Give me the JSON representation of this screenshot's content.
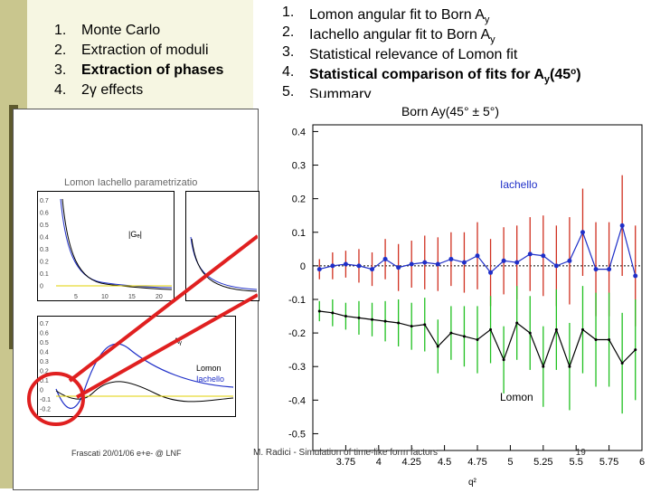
{
  "left_agenda": [
    {
      "num": "1.",
      "text": "Monte Carlo",
      "bold": false
    },
    {
      "num": "2.",
      "text": "Extraction of moduli",
      "bold": false
    },
    {
      "num": "3.",
      "text": "Extraction of phases",
      "bold": true
    },
    {
      "num": "4.",
      "text": "2γ effects",
      "bold": false
    }
  ],
  "right_agenda": [
    {
      "num": "1.",
      "pre": "Lomon angular fit to Born A",
      "sub": "y",
      "mid": "",
      "sup": "",
      "post": ""
    },
    {
      "num": "2.",
      "pre": "Iachello angular fit to Born A",
      "sub": "y",
      "mid": "",
      "sup": "",
      "post": ""
    },
    {
      "num": "3.",
      "pre": "Statistical relevance of Lomon fit",
      "sub": "",
      "mid": "",
      "sup": "",
      "post": ""
    },
    {
      "num": "4.",
      "pre": "Statistical comparison of fits for A",
      "sub": "y",
      "mid": "(45",
      "sup": "o",
      "post": ")",
      "bold": true
    },
    {
      "num": "5.",
      "pre": "Summary",
      "sub": "",
      "mid": "",
      "sup": "",
      "post": ""
    }
  ],
  "inner_slide": {
    "title": "Lomon  Iachello parametrizatio",
    "footer": "Frascati 20/01/06  e+e- @ LNF",
    "label_ge": "|Gₑ|",
    "label_ay": "Aᵧ",
    "legend_lomon": "Lomon",
    "legend_iachello": "Iachello",
    "x_ticks": [
      "5",
      "10",
      "15",
      "20"
    ],
    "x_ticks_right": [
      "5",
      "15"
    ],
    "y_ticks_top": [
      "0.7",
      "0.6",
      "0.5",
      "0.4",
      "0.3",
      "0.2",
      "0.1",
      "0"
    ],
    "y_ticks_bottom": [
      "0.7",
      "0.6",
      "0.5",
      "0.4",
      "0.3",
      "0.2",
      "0.1",
      "0",
      "-0.1",
      "-0.2"
    ],
    "x_label": "q²"
  },
  "footer": {
    "left": "M. Radici - Simulation of time-like form factors",
    "page": "19"
  },
  "chart_data": {
    "type": "line",
    "title": "Born Ay(45° ± 5°)",
    "xlabel": "q²",
    "ylabel": "",
    "xlim": [
      3.5,
      6.0
    ],
    "ylim": [
      -0.55,
      0.42
    ],
    "x_ticks": [
      "3.75",
      "4",
      "4.25",
      "4.5",
      "4.75",
      "5",
      "5.25",
      "5.5",
      "5.75",
      "6"
    ],
    "y_ticks": [
      "0.4",
      "0.3",
      "0.2",
      "0.1",
      "0",
      "-0.1",
      "-0.2",
      "-0.3",
      "-0.4",
      "-0.5"
    ],
    "x_tick_values": [
      3.75,
      4.0,
      4.25,
      4.5,
      4.75,
      5.0,
      5.25,
      5.5,
      5.75,
      6.0
    ],
    "y_tick_values": [
      0.4,
      0.3,
      0.2,
      0.1,
      0,
      -0.1,
      -0.2,
      -0.3,
      -0.4,
      -0.5
    ],
    "x": [
      3.55,
      3.65,
      3.75,
      3.85,
      3.95,
      4.05,
      4.15,
      4.25,
      4.35,
      4.45,
      4.55,
      4.65,
      4.75,
      4.85,
      4.95,
      5.05,
      5.15,
      5.25,
      5.35,
      5.45,
      5.55,
      5.65,
      5.75,
      5.85,
      5.95
    ],
    "series": [
      {
        "name": "Iachello",
        "color": "#1f2fc8",
        "error_color": "#d03020",
        "values": [
          -0.01,
          0.0,
          0.005,
          0.0,
          -0.01,
          0.02,
          -0.005,
          0.005,
          0.01,
          0.005,
          0.02,
          0.01,
          0.03,
          -0.02,
          0.015,
          0.01,
          0.035,
          0.03,
          0.0,
          0.015,
          0.1,
          -0.01,
          -0.01,
          0.12,
          -0.03
        ],
        "errors": [
          0.03,
          0.04,
          0.04,
          0.05,
          0.05,
          0.06,
          0.07,
          0.07,
          0.08,
          0.08,
          0.08,
          0.09,
          0.1,
          0.1,
          0.1,
          0.11,
          0.11,
          0.12,
          0.12,
          0.13,
          0.13,
          0.14,
          0.14,
          0.15,
          0.15
        ]
      },
      {
        "name": "Lomon",
        "color": "#000000",
        "error_color": "#20c020",
        "values": [
          -0.135,
          -0.14,
          -0.15,
          -0.155,
          -0.16,
          -0.165,
          -0.17,
          -0.18,
          -0.175,
          -0.24,
          -0.2,
          -0.21,
          -0.22,
          -0.19,
          -0.28,
          -0.17,
          -0.2,
          -0.3,
          -0.19,
          -0.3,
          -0.19,
          -0.22,
          -0.22,
          -0.29,
          -0.25
        ],
        "errors": [
          0.03,
          0.04,
          0.04,
          0.05,
          0.05,
          0.06,
          0.07,
          0.07,
          0.08,
          0.08,
          0.08,
          0.09,
          0.1,
          0.1,
          0.1,
          0.11,
          0.11,
          0.12,
          0.12,
          0.13,
          0.13,
          0.14,
          0.14,
          0.15,
          0.15
        ]
      }
    ],
    "labels": {
      "iachello": "Iachello",
      "lomon": "Lomon"
    },
    "legend": "inline"
  }
}
